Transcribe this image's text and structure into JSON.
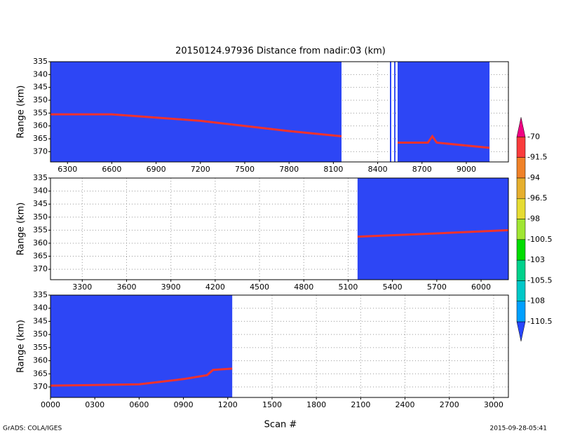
{
  "chart_data": [
    {
      "type": "radar",
      "title": "20150124.97936    Distance from nadir:03 (km)",
      "ylabel": "Range (km)",
      "xlim": [
        6185,
        9285
      ],
      "xticks": [
        6300,
        6600,
        6900,
        7200,
        7500,
        7800,
        8100,
        8400,
        8700,
        9000
      ],
      "ylim": [
        335,
        374
      ],
      "yticks": [
        335,
        340,
        345,
        350,
        355,
        360,
        365,
        370
      ],
      "invert_y": true,
      "grid": true,
      "fill_color": "#2d46f5",
      "line_color": "#f0322d",
      "extents": [
        [
          6185,
          8155
        ],
        [
          8483,
          8492
        ],
        [
          8512,
          8520
        ],
        [
          8535,
          9157
        ]
      ],
      "x": [
        6185,
        6600,
        7200,
        7800,
        8155,
        8300,
        8535,
        8740,
        8770,
        8800,
        9157
      ],
      "values": [
        355.5,
        355.5,
        358,
        362,
        364,
        null,
        366.5,
        366.5,
        364,
        366.5,
        368.5
      ]
    },
    {
      "type": "radar",
      "ylabel": "Range (km)",
      "xlim": [
        3085,
        6185
      ],
      "xticks": [
        3300,
        3600,
        3900,
        4200,
        4500,
        4800,
        5100,
        5400,
        5700,
        6000
      ],
      "ylim": [
        335,
        374
      ],
      "yticks": [
        335,
        340,
        345,
        350,
        355,
        360,
        365,
        370
      ],
      "invert_y": true,
      "grid": true,
      "fill_color": "#2d46f5",
      "line_color": "#f0322d",
      "extents": [
        [
          5164,
          6185
        ]
      ],
      "x": [
        5164,
        5600,
        6185
      ],
      "values": [
        357.5,
        356.5,
        355
      ]
    },
    {
      "type": "radar",
      "ylabel": "Range (km)",
      "xlabel": "Scan #",
      "xlim": [
        0,
        3100
      ],
      "xticks": [
        {
          "value": 0,
          "label": "0000"
        },
        {
          "value": 300,
          "label": "0300"
        },
        {
          "value": 600,
          "label": "0600"
        },
        {
          "value": 900,
          "label": "0900"
        },
        1200,
        1500,
        1800,
        2100,
        2400,
        2700,
        3000
      ],
      "ylim": [
        335,
        374
      ],
      "yticks": [
        335,
        340,
        345,
        350,
        355,
        360,
        365,
        370
      ],
      "invert_y": true,
      "grid": true,
      "fill_color": "#2d46f5",
      "line_color": "#f0322d",
      "extents": [
        [
          0,
          1230
        ]
      ],
      "x": [
        0,
        600,
        900,
        1060,
        1100,
        1230
      ],
      "values": [
        369.5,
        369,
        367,
        365.5,
        363.5,
        363
      ]
    },
    {
      "type": "colorbar",
      "levels": [
        -110.5,
        -108,
        -105.5,
        -103,
        -100.5,
        -98,
        -96.5,
        -94,
        -91.5,
        -70
      ],
      "colors": [
        "#2846ff",
        "#00a0ff",
        "#00c8c8",
        "#00d28c",
        "#00dc00",
        "#a0e632",
        "#e6dc32",
        "#e6af2d",
        "#f08228",
        "#fa3c3c",
        "#f00082"
      ]
    }
  ],
  "footer": {
    "left": "GrADS: COLA/IGES",
    "right": "2015-09-28-05:41"
  }
}
